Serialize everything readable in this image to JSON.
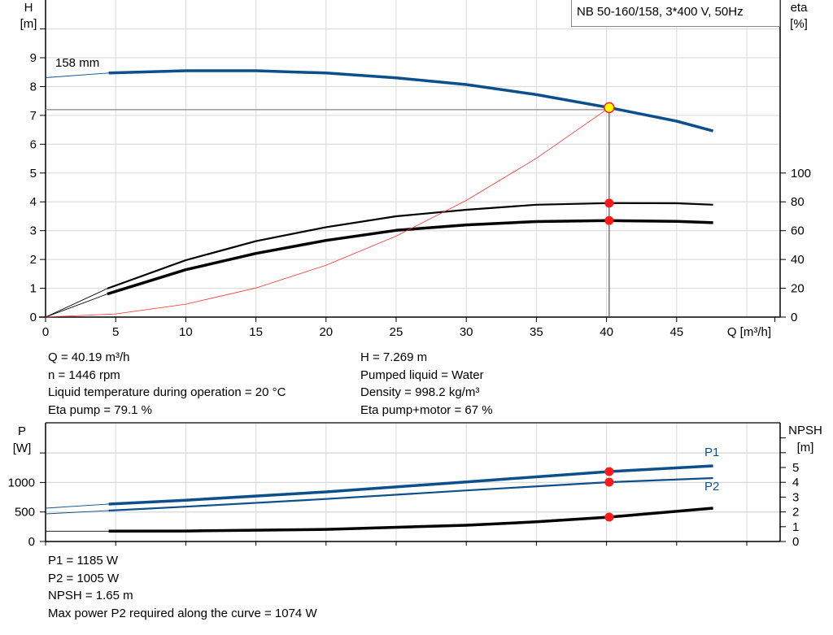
{
  "chart_data": [
    {
      "type": "line",
      "title": "NB 50-160/158, 3*400 V, 50Hz",
      "xlabel": "Q [m³/h]",
      "ylabel": "H",
      "ylabel_unit": "[m]",
      "y2label": "eta",
      "y2label_unit": "[%]",
      "xlim": [
        0,
        52
      ],
      "ylim": [
        0,
        11
      ],
      "y2lim": [
        0,
        220
      ],
      "xticks": [
        "0",
        "5",
        "10",
        "15",
        "20",
        "25",
        "30",
        "35",
        "40",
        "45"
      ],
      "yticks": [
        "0",
        "1",
        "2",
        "3",
        "4",
        "5",
        "6",
        "7",
        "8",
        "9"
      ],
      "y2ticks": [
        "0",
        "20",
        "40",
        "60",
        "80",
        "100"
      ],
      "grid": true,
      "curve_label": "158 mm",
      "series": [
        {
          "role": "head",
          "axis": "H",
          "color": "#0d4f8b",
          "x": [
            4.5,
            10,
            15,
            20,
            25,
            30,
            35,
            40.19,
            45,
            47.6
          ],
          "y": [
            8.47,
            8.55,
            8.55,
            8.47,
            8.3,
            8.07,
            7.72,
            7.269,
            6.8,
            6.46
          ],
          "extrapolated": {
            "x": [
              0,
              4.5
            ],
            "y": [
              8.31,
              8.47
            ]
          }
        },
        {
          "role": "eta-pump",
          "axis": "eta",
          "color": "#000000",
          "x": [
            4.4,
            10,
            15,
            20,
            25,
            30,
            35,
            40.19,
            45,
            47.6
          ],
          "y": [
            19.8,
            39.5,
            52.7,
            62.4,
            70,
            74.5,
            78,
            79.1,
            79,
            78
          ],
          "extrapolated": {
            "x": [
              0,
              4.4
            ],
            "y": [
              0,
              19.8
            ]
          }
        },
        {
          "role": "eta-pump-motor",
          "axis": "eta",
          "color": "#000000",
          "x": [
            4.4,
            10,
            15,
            20,
            25,
            30,
            35,
            40.19,
            45,
            47.6
          ],
          "y": [
            16,
            32.9,
            44.2,
            53.2,
            60.2,
            64,
            66.3,
            67,
            66.5,
            65.5
          ],
          "extrapolated": {
            "x": [
              0,
              4.4
            ],
            "y": [
              0,
              16
            ]
          }
        },
        {
          "role": "system-curve",
          "axis": "H",
          "color": "#ff3030",
          "x": [
            0,
            5,
            10,
            15,
            20,
            25,
            30,
            35,
            40.19
          ],
          "y": [
            0,
            0.11,
            0.45,
            1.01,
            1.8,
            2.81,
            4.05,
            5.51,
            7.269
          ]
        }
      ],
      "operating_point": {
        "Q": 40.19,
        "H": 7.269,
        "eta_pump": 79.1,
        "eta_pump_motor": 67
      }
    },
    {
      "type": "line",
      "xlabel": "",
      "ylabel": "P",
      "ylabel_unit": "[W]",
      "y2label": "NPSH",
      "y2label_unit": "[m]",
      "xlim": [
        0,
        52
      ],
      "ylim": [
        0,
        1750
      ],
      "y2lim": [
        0,
        7
      ],
      "yticks": [
        "0",
        "500",
        "1000"
      ],
      "y2ticks": [
        "0",
        "1",
        "2",
        "3",
        "4",
        "5"
      ],
      "grid": true,
      "series": [
        {
          "name": "P1",
          "axis": "P",
          "color": "#0d4f8b",
          "x": [
            4.5,
            10,
            20,
            30,
            40.19,
            47.6
          ],
          "y": [
            634,
            700,
            840,
            1010,
            1185,
            1281
          ],
          "extrapolated": {
            "x": [
              0,
              4.5
            ],
            "y": [
              565,
              634
            ]
          }
        },
        {
          "name": "P2",
          "axis": "P",
          "color": "#0d4f8b",
          "x": [
            4.5,
            10,
            20,
            30,
            40.19,
            47.6
          ],
          "y": [
            523,
            590,
            720,
            865,
            1005,
            1074
          ],
          "extrapolated": {
            "x": [
              0,
              4.5
            ],
            "y": [
              468,
              523
            ]
          }
        },
        {
          "role": "npsh",
          "axis": "NPSH",
          "color": "#000000",
          "x": [
            4.5,
            10,
            20,
            30,
            35,
            40.19,
            47.6
          ],
          "y": [
            0.7,
            0.71,
            0.82,
            1.1,
            1.33,
            1.65,
            2.25
          ],
          "extrapolated": {
            "x": [
              0,
              4.5
            ],
            "y": [
              0.7,
              0.7
            ]
          }
        }
      ],
      "operating_point": {
        "P1": 1185,
        "P2": 1005,
        "NPSH": 1.65
      }
    }
  ],
  "info_top_left": [
    "Q = 40.19 m³/h",
    "n = 1446 rpm",
    "Liquid temperature during operation = 20 °C",
    "Eta pump = 79.1 %"
  ],
  "info_top_right": [
    "H = 7.269 m",
    "Pumped liquid = Water",
    "Density = 998.2 kg/m³",
    "Eta pump+motor = 67 %"
  ],
  "info_bottom": [
    "P1 = 1185 W",
    "P2 = 1005 W",
    "NPSH = 1.65 m",
    "Max power P2 required along the curve = 1074 W"
  ]
}
